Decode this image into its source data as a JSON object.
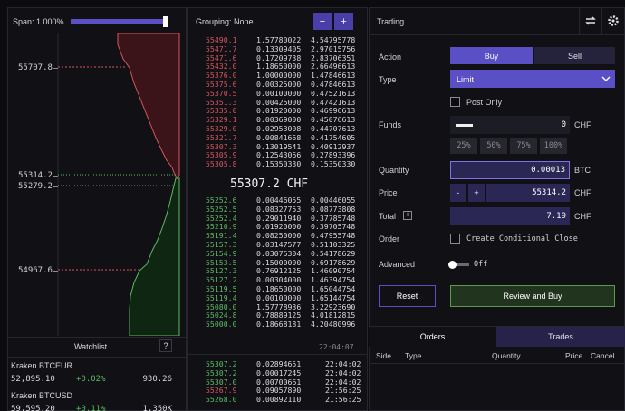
{
  "left": {
    "span": "Span: 1.000%",
    "depth_labels": [
      "55707.8",
      "55314.2",
      "55279.2",
      "54967.6"
    ],
    "watchlist": {
      "title": "Watchlist",
      "help": "?",
      "items": [
        {
          "name": "Kraken BTCEUR",
          "price": "52,895.10",
          "change": "+0.02%",
          "volume": "930.26"
        },
        {
          "name": "Kraken BTCUSD",
          "price": "59,595.20",
          "change": "+0.11%",
          "volume": "1,350K"
        }
      ]
    }
  },
  "book": {
    "grouping": "Grouping: None",
    "minus": "−",
    "plus": "+",
    "asks": [
      [
        "55490.1",
        "1.57780022",
        "4.54795778"
      ],
      [
        "55471.7",
        "0.13309405",
        "2.97015756"
      ],
      [
        "55471.6",
        "0.17209738",
        "2.83706351"
      ],
      [
        "55432.0",
        "1.18650000",
        "2.66496613"
      ],
      [
        "55376.0",
        "1.00000000",
        "1.47846613"
      ],
      [
        "55375.6",
        "0.00325000",
        "0.47846613"
      ],
      [
        "55370.5",
        "0.00100000",
        "0.47521613"
      ],
      [
        "55351.3",
        "0.00425000",
        "0.47421613"
      ],
      [
        "55335.0",
        "0.01920000",
        "0.46996613"
      ],
      [
        "55329.1",
        "0.00369000",
        "0.45076613"
      ],
      [
        "55329.0",
        "0.02953008",
        "0.44707613"
      ],
      [
        "55321.7",
        "0.00841668",
        "0.41754605"
      ],
      [
        "55307.3",
        "0.13019541",
        "0.40912937"
      ],
      [
        "55305.9",
        "0.12543066",
        "0.27893396"
      ],
      [
        "55305.8",
        "0.15350330",
        "0.15350330"
      ]
    ],
    "mid": "55307.2 CHF",
    "bids": [
      [
        "55252.6",
        "0.00446055",
        "0.00446055"
      ],
      [
        "55252.5",
        "0.08327753",
        "0.08773808"
      ],
      [
        "55252.4",
        "0.29011940",
        "0.37785748"
      ],
      [
        "55210.9",
        "0.01920000",
        "0.39705748"
      ],
      [
        "55191.4",
        "0.08250000",
        "0.47955748"
      ],
      [
        "55157.3",
        "0.03147577",
        "0.51103325"
      ],
      [
        "55154.9",
        "0.03075304",
        "0.54178629"
      ],
      [
        "55153.5",
        "0.15000000",
        "0.69178629"
      ],
      [
        "55127.3",
        "0.76912125",
        "1.46090754"
      ],
      [
        "55127.2",
        "0.00304000",
        "1.46394754"
      ],
      [
        "55119.5",
        "0.18650000",
        "1.65044754"
      ],
      [
        "55119.4",
        "0.00100000",
        "1.65144754"
      ],
      [
        "55080.0",
        "1.57778936",
        "3.22923690"
      ],
      [
        "55024.8",
        "0.78889125",
        "4.01812815"
      ],
      [
        "55000.0",
        "0.18668181",
        "4.20480996"
      ]
    ],
    "time": "22:04:07",
    "trades": [
      {
        "price": "55307.2",
        "amount": "0.02894651",
        "time": "22:04:02",
        "color": "#5dbb63"
      },
      {
        "price": "55307.2",
        "amount": "0.00017245",
        "time": "22:04:02",
        "color": "#5dbb63"
      },
      {
        "price": "55307.0",
        "amount": "0.00700661",
        "time": "22:04:02",
        "color": "#5dbb63"
      },
      {
        "price": "55267.9",
        "amount": "0.09057890",
        "time": "21:56:25",
        "color": "#d9555f"
      },
      {
        "price": "55268.0",
        "amount": "0.00892110",
        "time": "21:56:25",
        "color": "#5dbb63"
      }
    ]
  },
  "trading": {
    "title": "Trading",
    "action_label": "Action",
    "buy": "Buy",
    "sell": "Sell",
    "type_label": "Type",
    "type_value": "Limit",
    "post_only": "Post Only",
    "funds_label": "Funds",
    "funds_value": "0",
    "funds_unit": "CHF",
    "percents": [
      "25%",
      "50%",
      "75%",
      "100%"
    ],
    "quantity_label": "Quantity",
    "quantity_value": "0.00013",
    "quantity_unit": "BTC",
    "price_label": "Price",
    "price_minus": "-",
    "price_plus": "+",
    "price_value": "55314.2",
    "price_unit": "CHF",
    "total_label": "Total",
    "total_info": "i",
    "total_value": "7.19",
    "total_unit": "CHF",
    "order_label": "Order",
    "conditional_close": "Create Conditional Close",
    "advanced_label": "Advanced",
    "advanced_value": "Off",
    "reset": "Reset",
    "review": "Review and Buy",
    "tabs": [
      "Orders",
      "Trades"
    ],
    "columns": [
      "Side",
      "Type",
      "Quantity",
      "Price",
      "Cancel"
    ]
  }
}
